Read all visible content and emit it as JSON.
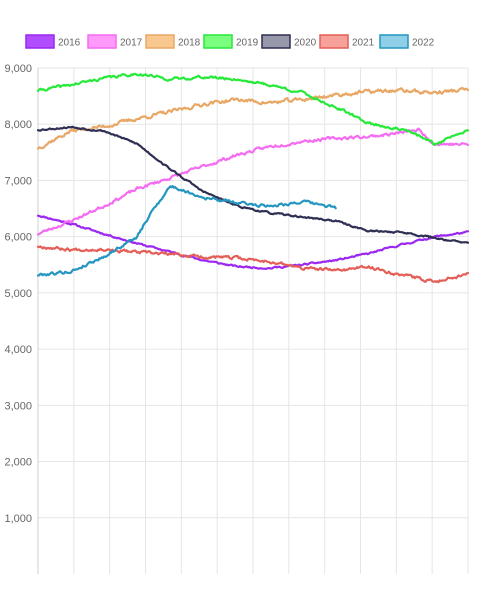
{
  "chart_data": {
    "type": "line",
    "title": "",
    "xlabel": "",
    "ylabel": "",
    "ylim": [
      0,
      9000
    ],
    "y_ticks": [
      1000,
      2000,
      3000,
      4000,
      5000,
      6000,
      7000,
      8000,
      9000
    ],
    "y_tick_labels": [
      "1,000",
      "2,000",
      "3,000",
      "4,000",
      "5,000",
      "6,000",
      "7,000",
      "8,000",
      "9,000"
    ],
    "x_range": [
      0,
      52
    ],
    "x_grid_count": 12,
    "grid": true,
    "legend_position": "top",
    "series": [
      {
        "name": "2016",
        "color": "#9b27f0",
        "fill": "#b14dff",
        "x": [
          0,
          4,
          8,
          12,
          16,
          20,
          24,
          28,
          32,
          36,
          40,
          44,
          48,
          52
        ],
        "y": [
          6380,
          6230,
          6050,
          5880,
          5730,
          5580,
          5470,
          5440,
          5500,
          5580,
          5700,
          5860,
          6000,
          6080
        ],
        "noise": 25,
        "noise_seed": 11
      },
      {
        "name": "2017",
        "color": "#f46cf1",
        "fill": "#ff99fb",
        "x": [
          0,
          4,
          8,
          12,
          16,
          20,
          24,
          28,
          32,
          36,
          40,
          44,
          46,
          48,
          52
        ],
        "y": [
          6050,
          6280,
          6550,
          6850,
          7050,
          7250,
          7450,
          7600,
          7700,
          7750,
          7780,
          7850,
          7900,
          7650,
          7640
        ],
        "noise": 45,
        "noise_seed": 23
      },
      {
        "name": "2018",
        "color": "#e8a764",
        "fill": "#f8c88f",
        "x": [
          0,
          4,
          8,
          12,
          16,
          20,
          24,
          28,
          32,
          36,
          40,
          44,
          48,
          52
        ],
        "y": [
          7580,
          7880,
          7960,
          8100,
          8220,
          8360,
          8440,
          8380,
          8440,
          8520,
          8580,
          8600,
          8560,
          8620
        ],
        "noise": 55,
        "noise_seed": 37
      },
      {
        "name": "2019",
        "color": "#27e93a",
        "fill": "#7bff7f",
        "x": [
          0,
          4,
          8,
          12,
          16,
          20,
          24,
          28,
          32,
          36,
          40,
          44,
          46,
          48,
          52
        ],
        "y": [
          8600,
          8700,
          8820,
          8900,
          8800,
          8840,
          8800,
          8700,
          8560,
          8300,
          8020,
          7900,
          7800,
          7640,
          7920
        ],
        "noise": 40,
        "noise_seed": 41
      },
      {
        "name": "2020",
        "color": "#2e2f52",
        "fill": "#9798aa",
        "x": [
          0,
          4,
          8,
          12,
          16,
          20,
          24,
          28,
          32,
          36,
          40,
          44,
          48,
          52
        ],
        "y": [
          7900,
          7950,
          7880,
          7650,
          7200,
          6800,
          6550,
          6420,
          6350,
          6280,
          6100,
          6080,
          5980,
          5880
        ],
        "noise": 25,
        "noise_seed": 53
      },
      {
        "name": "2021",
        "color": "#e35f57",
        "fill": "#f7a19a",
        "x": [
          0,
          4,
          8,
          12,
          16,
          20,
          24,
          28,
          32,
          36,
          40,
          44,
          48,
          52
        ],
        "y": [
          5830,
          5770,
          5780,
          5720,
          5690,
          5640,
          5620,
          5560,
          5440,
          5400,
          5460,
          5320,
          5200,
          5350
        ],
        "noise": 45,
        "noise_seed": 67
      },
      {
        "name": "2022",
        "color": "#2496c1",
        "fill": "#8fd0e8",
        "x": [
          0,
          4,
          8,
          12,
          14,
          16,
          18,
          20,
          24,
          28,
          32,
          36
        ],
        "y": [
          5320,
          5380,
          5650,
          6000,
          6500,
          6900,
          6800,
          6700,
          6600,
          6550,
          6620,
          6520
        ],
        "noise": 45,
        "noise_seed": 79
      }
    ]
  }
}
